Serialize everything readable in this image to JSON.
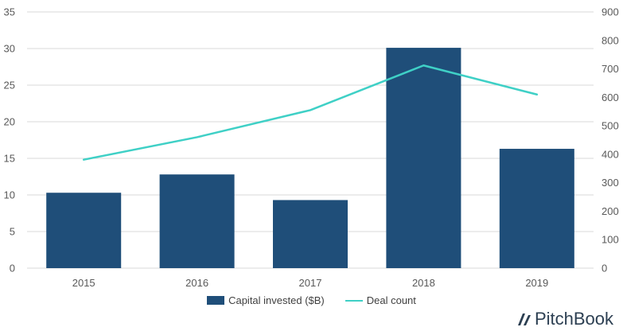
{
  "chart_data": {
    "type": "bar",
    "categories": [
      "2015",
      "2016",
      "2017",
      "2018",
      "2019"
    ],
    "series": [
      {
        "name": "Capital invested ($B)",
        "type": "bar",
        "axis": "left",
        "values": [
          10.3,
          12.8,
          9.3,
          30.1,
          16.3
        ]
      },
      {
        "name": "Deal count",
        "type": "line",
        "axis": "right",
        "values": [
          381,
          460,
          555,
          712,
          610
        ]
      }
    ],
    "y_left": {
      "ylim": [
        0,
        35
      ],
      "ticks": [
        "0",
        "5",
        "10",
        "15",
        "20",
        "25",
        "30",
        "35"
      ]
    },
    "y_right": {
      "ylim": [
        0,
        900
      ],
      "ticks": [
        "0",
        "100",
        "200",
        "300",
        "400",
        "500",
        "600",
        "700",
        "800",
        "900"
      ]
    },
    "grid": true,
    "legend_position": "bottom",
    "colors": {
      "bar": "#1f4e79",
      "line": "#3fd0c6",
      "grid": "#d9d9d9"
    }
  },
  "brand": {
    "name": "PitchBook"
  }
}
